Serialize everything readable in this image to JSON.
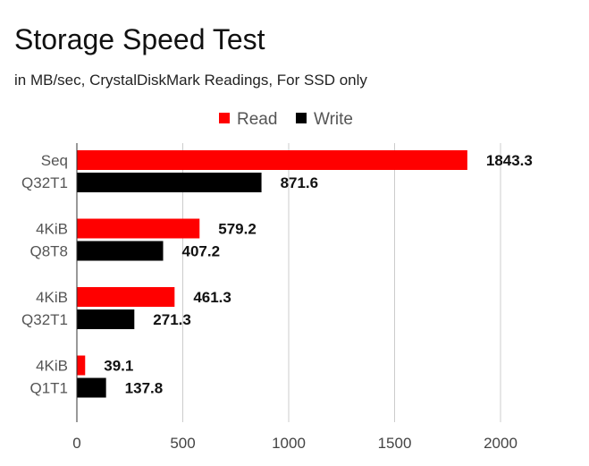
{
  "chart_data": {
    "type": "bar",
    "orientation": "horizontal",
    "title": "Storage Speed Test",
    "subtitle": "in MB/sec, CrystalDiskMark Readings, For SSD only",
    "categories": [
      [
        "Seq",
        "Q32T1"
      ],
      [
        "4KiB",
        "Q8T8"
      ],
      [
        "4KiB",
        "Q32T1"
      ],
      [
        "4KiB",
        "Q1T1"
      ]
    ],
    "series": [
      {
        "name": "Read",
        "color": "#ff0000",
        "values": [
          1843.3,
          579.2,
          461.3,
          39.1
        ]
      },
      {
        "name": "Write",
        "color": "#000000",
        "values": [
          871.6,
          407.2,
          271.3,
          137.8
        ]
      }
    ],
    "xlim": [
      0,
      2000
    ],
    "x_ticks": [
      "0",
      "500",
      "1000",
      "1500",
      "2000"
    ],
    "data_labels": true,
    "grid": true,
    "legend": "top-center",
    "xlabel": "",
    "ylabel": ""
  }
}
